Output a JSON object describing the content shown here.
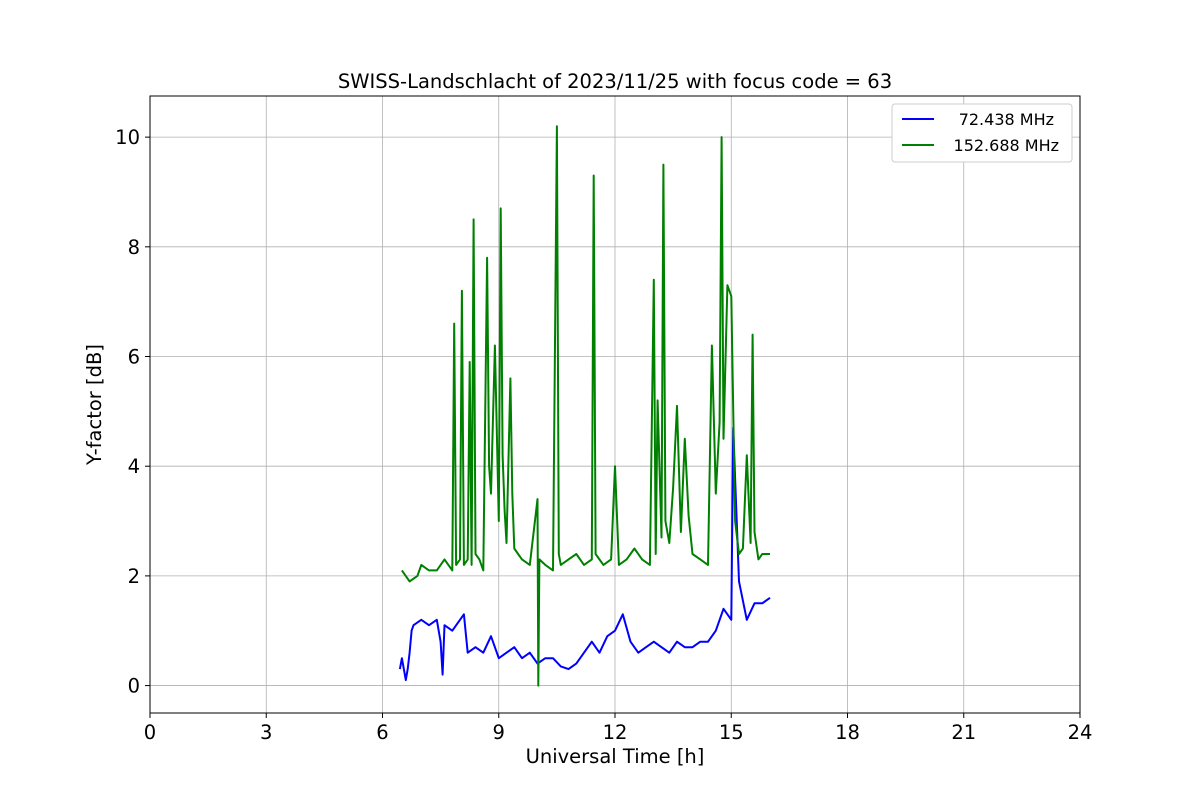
{
  "chart_data": {
    "type": "line",
    "title": "SWISS-Landschlacht of 2023/11/25 with focus code = 63",
    "xlabel": "Universal Time [h]",
    "ylabel": "Y-factor [dB]",
    "xlim": [
      0,
      24
    ],
    "ylim": [
      -0.5,
      10.75
    ],
    "xticks": [
      0,
      3,
      6,
      9,
      12,
      15,
      18,
      21,
      24
    ],
    "yticks": [
      0,
      2,
      4,
      6,
      8,
      10
    ],
    "grid": true,
    "legend_position": "top-right",
    "series": [
      {
        "name": "72.438 MHz",
        "color": "#0000ff",
        "x": [
          6.45,
          6.5,
          6.6,
          6.65,
          6.7,
          6.75,
          6.8,
          7.0,
          7.2,
          7.4,
          7.5,
          7.55,
          7.6,
          7.8,
          8.0,
          8.1,
          8.2,
          8.4,
          8.6,
          8.8,
          9.0,
          9.2,
          9.4,
          9.6,
          9.8,
          10.0,
          10.2,
          10.4,
          10.6,
          10.8,
          11.0,
          11.2,
          11.4,
          11.6,
          11.8,
          12.0,
          12.2,
          12.4,
          12.6,
          12.8,
          13.0,
          13.2,
          13.4,
          13.6,
          13.8,
          14.0,
          14.2,
          14.4,
          14.6,
          14.8,
          15.0,
          15.05,
          15.2,
          15.4,
          15.6,
          15.8,
          16.0
        ],
        "y": [
          0.3,
          0.5,
          0.1,
          0.3,
          0.6,
          1.0,
          1.1,
          1.2,
          1.1,
          1.2,
          0.8,
          0.2,
          1.1,
          1.0,
          1.2,
          1.3,
          0.6,
          0.7,
          0.6,
          0.9,
          0.5,
          0.6,
          0.7,
          0.5,
          0.6,
          0.4,
          0.5,
          0.5,
          0.35,
          0.3,
          0.4,
          0.6,
          0.8,
          0.6,
          0.9,
          1.0,
          1.3,
          0.8,
          0.6,
          0.7,
          0.8,
          0.7,
          0.6,
          0.8,
          0.7,
          0.7,
          0.8,
          0.8,
          1.0,
          1.4,
          1.2,
          4.7,
          1.9,
          1.2,
          1.5,
          1.5,
          1.6
        ]
      },
      {
        "name": "152.688 MHz",
        "color": "#008000",
        "x": [
          6.5,
          6.7,
          6.9,
          7.0,
          7.2,
          7.4,
          7.6,
          7.8,
          7.85,
          7.9,
          8.0,
          8.05,
          8.1,
          8.2,
          8.25,
          8.3,
          8.35,
          8.4,
          8.5,
          8.6,
          8.7,
          8.75,
          8.8,
          8.9,
          9.0,
          9.05,
          9.1,
          9.15,
          9.2,
          9.3,
          9.35,
          9.4,
          9.5,
          9.6,
          9.8,
          10.0,
          10.02,
          10.05,
          10.2,
          10.4,
          10.5,
          10.55,
          10.6,
          10.8,
          11.0,
          11.2,
          11.4,
          11.45,
          11.5,
          11.7,
          11.9,
          12.0,
          12.1,
          12.3,
          12.5,
          12.7,
          12.9,
          13.0,
          13.05,
          13.1,
          13.2,
          13.25,
          13.3,
          13.4,
          13.5,
          13.6,
          13.7,
          13.8,
          13.9,
          14.0,
          14.2,
          14.4,
          14.5,
          14.6,
          14.7,
          14.75,
          14.8,
          14.9,
          15.0,
          15.1,
          15.2,
          15.3,
          15.4,
          15.5,
          15.55,
          15.6,
          15.7,
          15.8,
          16.0
        ],
        "y": [
          2.1,
          1.9,
          2.0,
          2.2,
          2.1,
          2.1,
          2.3,
          2.1,
          6.6,
          2.2,
          2.3,
          7.2,
          2.2,
          2.3,
          5.9,
          2.2,
          8.5,
          2.4,
          2.3,
          2.1,
          7.8,
          4.0,
          3.5,
          6.2,
          3.0,
          8.7,
          4.2,
          3.2,
          2.6,
          5.6,
          3.5,
          2.5,
          2.4,
          2.3,
          2.2,
          3.4,
          0.0,
          2.3,
          2.2,
          2.1,
          10.2,
          2.4,
          2.2,
          2.3,
          2.4,
          2.2,
          2.3,
          9.3,
          2.4,
          2.2,
          2.3,
          4.0,
          2.2,
          2.3,
          2.5,
          2.3,
          2.2,
          7.4,
          2.4,
          5.2,
          2.7,
          9.5,
          3.0,
          2.6,
          3.6,
          5.1,
          2.8,
          4.5,
          3.1,
          2.4,
          2.3,
          2.2,
          6.2,
          3.5,
          4.8,
          10.0,
          4.5,
          7.3,
          7.1,
          3.0,
          2.4,
          2.5,
          4.2,
          2.6,
          6.4,
          2.8,
          2.3,
          2.4,
          2.4
        ]
      }
    ]
  }
}
